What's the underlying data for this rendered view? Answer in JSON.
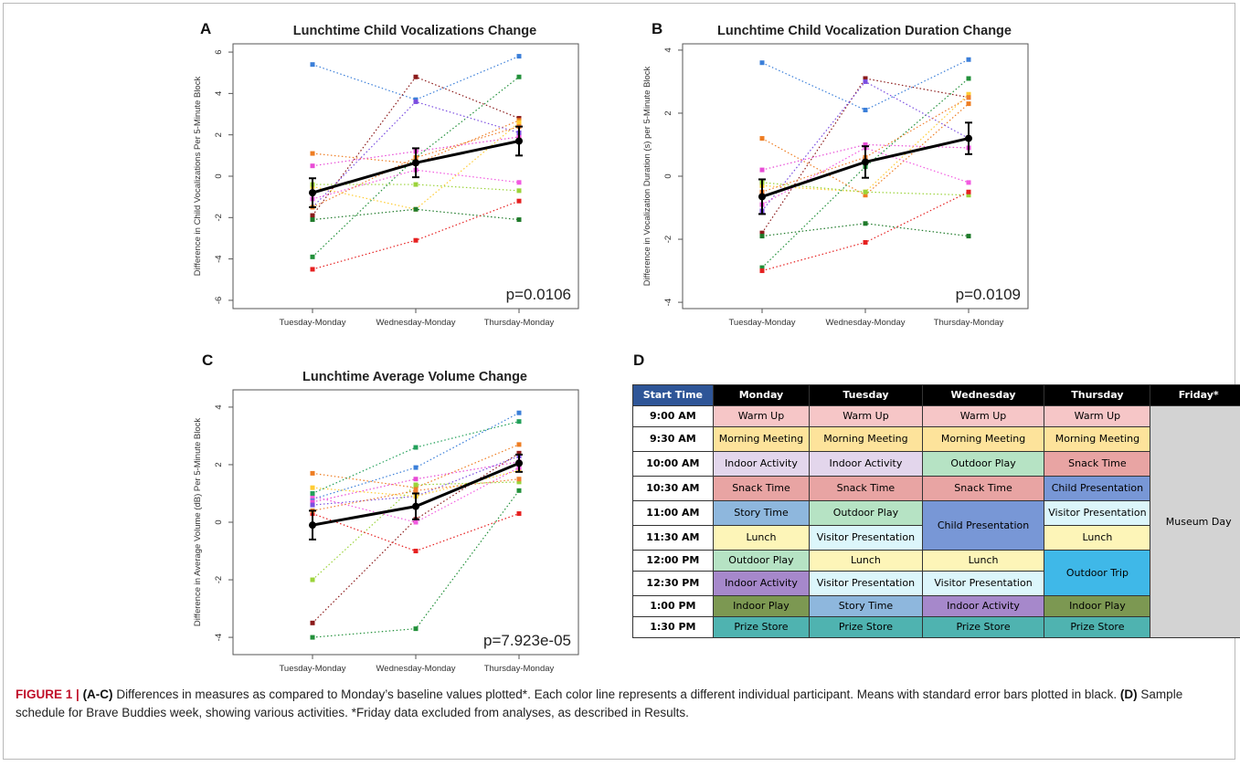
{
  "panels": [
    {
      "letter": "A",
      "chart_data": {
        "type": "scatter",
        "title": "Lunchtime Child Vocalizations Change",
        "xlabel": "",
        "ylabel": "Difference in Child Vocalizations Per 5-Minute Block",
        "categories": [
          "Tuesday-Monday",
          "Wednesday-Monday",
          "Thursday-Monday"
        ],
        "yticks": [
          -6,
          -4,
          -2,
          0,
          2,
          4,
          6
        ],
        "ylim": [
          -6.4,
          6.4
        ],
        "annotation": "p=0.0106",
        "grid": false,
        "series": [
          {
            "color": "#3b7fd9",
            "values": [
              5.4,
              3.7,
              5.8
            ]
          },
          {
            "color": "#22903a",
            "values": [
              -3.9,
              0.9,
              4.8
            ]
          },
          {
            "color": "#8b1a1a",
            "values": [
              -1.9,
              4.8,
              2.8
            ]
          },
          {
            "color": "#ee7d22",
            "values": [
              1.1,
              0.6,
              2.7
            ]
          },
          {
            "color": "#e84cd6",
            "values": [
              0.5,
              1.2,
              1.9
            ]
          },
          {
            "color": "#7b4ee0",
            "values": [
              -1.5,
              3.6,
              2.1
            ]
          },
          {
            "color": "#ffcc33",
            "values": [
              -0.5,
              -1.6,
              2.6
            ]
          },
          {
            "color": "#9bd33a",
            "values": [
              -0.4,
              -0.4,
              -0.7
            ]
          },
          {
            "color": "#f25ae0",
            "values": [
              -1.1,
              0.3,
              -0.3
            ]
          },
          {
            "color": "#1f7a2a",
            "values": [
              -2.1,
              -1.6,
              -2.1
            ]
          },
          {
            "color": "#e62020",
            "values": [
              -4.5,
              -3.1,
              -1.2
            ]
          },
          {
            "color": "#f08030",
            "values": [
              -1.5,
              0.9,
              2.4
            ]
          }
        ],
        "mean": {
          "values": [
            -0.8,
            0.65,
            1.7
          ],
          "error": [
            0.7,
            0.7,
            0.7
          ]
        }
      }
    },
    {
      "letter": "B",
      "chart_data": {
        "type": "scatter",
        "title": "Lunchtime Child Vocalization Duration Change",
        "xlabel": "",
        "ylabel": "Difference in Vocalization Duration (s) per 5-Minute Block",
        "categories": [
          "Tuesday-Monday",
          "Wednesday-Monday",
          "Thursday-Monday"
        ],
        "yticks": [
          -4,
          -2,
          0,
          2,
          4
        ],
        "ylim": [
          -4.2,
          4.2
        ],
        "annotation": "p=0.0109",
        "grid": false,
        "series": [
          {
            "color": "#3b7fd9",
            "values": [
              3.6,
              2.1,
              3.7
            ]
          },
          {
            "color": "#22903a",
            "values": [
              -2.9,
              0.3,
              3.1
            ]
          },
          {
            "color": "#8b1a1a",
            "values": [
              -1.8,
              3.1,
              2.5
            ]
          },
          {
            "color": "#ee7d22",
            "values": [
              1.2,
              -0.6,
              2.3
            ]
          },
          {
            "color": "#e84cd6",
            "values": [
              0.2,
              1.0,
              0.9
            ]
          },
          {
            "color": "#7b4ee0",
            "values": [
              -1.1,
              3.0,
              1.2
            ]
          },
          {
            "color": "#ffcc33",
            "values": [
              -0.3,
              -0.5,
              2.6
            ]
          },
          {
            "color": "#9bd33a",
            "values": [
              -0.2,
              -0.5,
              -0.6
            ]
          },
          {
            "color": "#f25ae0",
            "values": [
              -0.9,
              0.9,
              -0.2
            ]
          },
          {
            "color": "#1f7a2a",
            "values": [
              -1.9,
              -1.5,
              -1.9
            ]
          },
          {
            "color": "#e62020",
            "values": [
              -3.0,
              -2.1,
              -0.5
            ]
          },
          {
            "color": "#f08030",
            "values": [
              -0.5,
              0.6,
              2.5
            ]
          }
        ],
        "mean": {
          "values": [
            -0.65,
            0.45,
            1.2
          ],
          "error": [
            0.55,
            0.5,
            0.5
          ]
        }
      }
    },
    {
      "letter": "C",
      "chart_data": {
        "type": "scatter",
        "title": "Lunchtime Average Volume Change",
        "xlabel": "",
        "ylabel": "Difference in Average Volume (dB) Per 5-Minute Block",
        "categories": [
          "Tuesday-Monday",
          "Wednesday-Monday",
          "Thursday-Monday"
        ],
        "yticks": [
          -4,
          -2,
          0,
          2,
          4
        ],
        "ylim": [
          -4.6,
          4.6
        ],
        "annotation": "p=7.923e-05",
        "grid": false,
        "series": [
          {
            "color": "#3b7fd9",
            "values": [
              0.8,
              1.9,
              3.8
            ]
          },
          {
            "color": "#22903a",
            "values": [
              -4.0,
              -3.7,
              1.1
            ]
          },
          {
            "color": "#8b1a1a",
            "values": [
              -3.5,
              0.1,
              2.4
            ]
          },
          {
            "color": "#ee7d22",
            "values": [
              1.7,
              1.2,
              2.7
            ]
          },
          {
            "color": "#e84cd6",
            "values": [
              0.7,
              1.5,
              2.1
            ]
          },
          {
            "color": "#7b4ee0",
            "values": [
              0.6,
              0.9,
              2.3
            ]
          },
          {
            "color": "#ffcc33",
            "values": [
              1.2,
              0.9,
              1.8
            ]
          },
          {
            "color": "#9bd33a",
            "values": [
              -2.0,
              1.3,
              1.4
            ]
          },
          {
            "color": "#f25ae0",
            "values": [
              0.9,
              0.0,
              1.9
            ]
          },
          {
            "color": "#23a05a",
            "values": [
              1.0,
              2.6,
              3.5
            ]
          },
          {
            "color": "#e62020",
            "values": [
              0.3,
              -1.0,
              0.3
            ]
          },
          {
            "color": "#f08030",
            "values": [
              0.4,
              1.1,
              1.5
            ]
          }
        ],
        "mean": {
          "values": [
            -0.1,
            0.55,
            2.05
          ],
          "error": [
            0.5,
            0.45,
            0.3
          ]
        }
      }
    }
  ],
  "schedule": {
    "letter": "D",
    "headers": [
      "Start Time",
      "Monday",
      "Tuesday",
      "Wednesday",
      "Thursday",
      "Friday*"
    ],
    "times": [
      "9:00 AM",
      "9:30 AM",
      "10:00 AM",
      "10:30 AM",
      "11:00 AM",
      "11:30 AM",
      "12:00 PM",
      "12:30 PM",
      "1:00 PM",
      "1:30 PM"
    ],
    "cells": {
      "mon": [
        "Warm Up",
        "Morning Meeting",
        "Indoor Activity",
        "Snack Time",
        "Story Time",
        "Lunch",
        "Outdoor Play",
        "Indoor Activity",
        "Indoor Play",
        "Prize Store"
      ],
      "tue": [
        "Warm Up",
        "Morning Meeting",
        "Indoor Activity",
        "Snack Time",
        "Outdoor Play",
        "Visitor Presentation",
        "Lunch",
        "Visitor Presentation",
        "Story Time",
        "Prize Store"
      ],
      "wed": [
        "Warm Up",
        "Morning Meeting",
        "Outdoor Play",
        "Snack Time",
        "Child Presentation",
        "Lunch",
        "Visitor Presentation",
        "Indoor Activity",
        "Prize Store"
      ],
      "thu": [
        "Warm Up",
        "Morning Meeting",
        "Snack Time",
        "Child Presentation",
        "Visitor Presentation",
        "Lunch",
        "Outdoor Trip",
        "Indoor Play",
        "Prize Store"
      ],
      "fri": "Museum Day"
    }
  },
  "caption": {
    "lead": "FIGURE 1 |",
    "b1": "(A-C)",
    "t1": " Differences in measures as compared to Monday’s baseline values plotted*. Each color line represents a different individual participant. Means with standard error bars plotted in black. ",
    "b2": "(D)",
    "t2": " Sample schedule for Brave Buddies week, showing various activities. *Friday data excluded from analyses, as described in Results."
  }
}
